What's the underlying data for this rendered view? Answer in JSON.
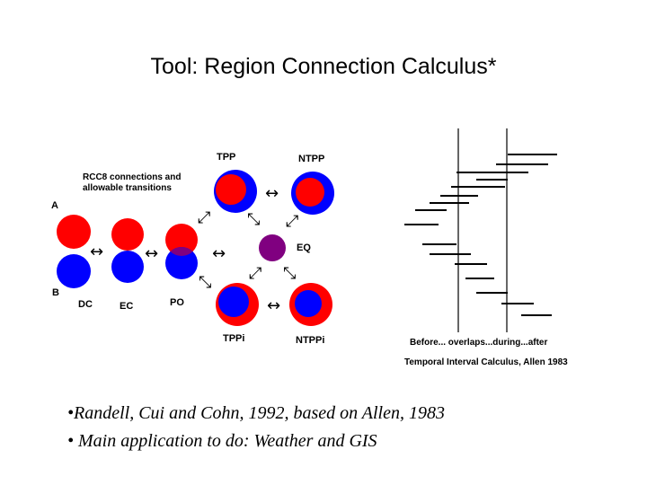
{
  "title": "Tool: Region Connection Calculus*",
  "rcc": {
    "caption_line1": "RCC8 connections and",
    "caption_line2": "allowable transitions",
    "label_a": "A",
    "label_b": "B",
    "labels": {
      "dc": "DC",
      "ec": "EC",
      "po": "PO",
      "tpp": "TPP",
      "ntpp": "NTPP",
      "eq": "EQ",
      "tppi": "TPPi",
      "ntppi": "NTPPi"
    },
    "arrow_horizontal": "↔",
    "arrow_up_right": "⤢",
    "arrow_down_right": "⤡"
  },
  "interval": {
    "caption1": "Before... overlaps...during...after",
    "caption2": "Temporal Interval Calculus, Allen 1983"
  },
  "bullets": [
    "•Randell, Cui and Cohn, 1992, based on Allen, 1983",
    "• Main application to do: Weather and GIS"
  ],
  "colors": {
    "red": "#ff0000",
    "blue": "#0000ff",
    "purple": "#800080"
  }
}
